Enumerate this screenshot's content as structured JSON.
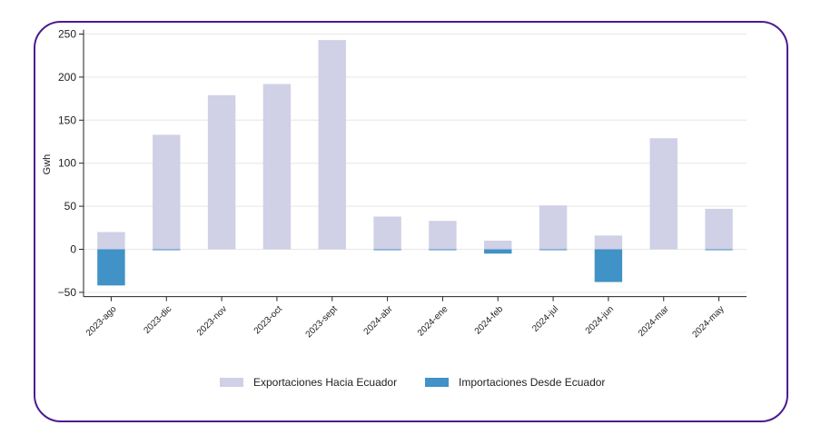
{
  "chart_data": {
    "type": "bar",
    "ylabel": "Gwh",
    "xlabel": "",
    "ylim": [
      -55,
      255
    ],
    "yticks": [
      250,
      200,
      150,
      100,
      50,
      0,
      -50
    ],
    "ytick_labels": [
      "250",
      "200",
      "150",
      "100",
      "50",
      "0",
      "−50"
    ],
    "grid": true,
    "legend_position": "bottom-center",
    "categories": [
      "2023-ago",
      "2023-dic",
      "2023-nov",
      "2023-oct",
      "2023-sept",
      "2024-abr",
      "2024-ene",
      "2024-feb",
      "2024-jul",
      "2024-jun",
      "2024-mar",
      "2024-may"
    ],
    "series": [
      {
        "name": "Exportaciones Hacia Ecuador",
        "color": "#d0d0e6",
        "values": [
          20,
          133,
          179,
          192,
          243,
          38,
          33,
          10,
          51,
          16,
          129,
          47
        ]
      },
      {
        "name": "Importaciones Desde Ecuador",
        "color": "#4192c6",
        "values": [
          -42,
          -1,
          0,
          0,
          0,
          -1,
          -1,
          -5,
          -1,
          -38,
          0,
          -1
        ]
      }
    ]
  }
}
